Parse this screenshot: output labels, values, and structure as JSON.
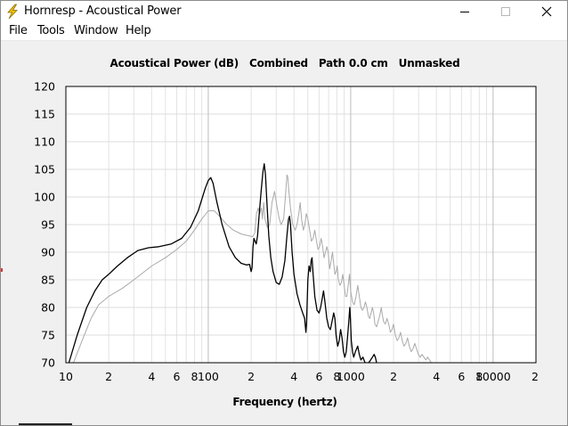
{
  "window": {
    "title": "Hornresp - Acoustical Power",
    "controls": {
      "minimize": "minimize-icon",
      "maximize": "maximize-icon",
      "close": "close-icon"
    }
  },
  "menu": [
    "File",
    "Tools",
    "Window",
    "Help"
  ],
  "chart_data": {
    "type": "line",
    "title": "Acoustical Power (dB)   Combined   Path 0.0 cm   Unmasked",
    "xlabel": "Frequency (hertz)",
    "ylabel": "",
    "xscale": "log",
    "xlim": [
      10,
      20000
    ],
    "ylim": [
      70,
      120
    ],
    "grid": true,
    "yticks": [
      70,
      75,
      80,
      85,
      90,
      95,
      100,
      105,
      110,
      115,
      120
    ],
    "xtick_labels": [
      {
        "value": 10,
        "label": "10"
      },
      {
        "value": 20,
        "label": "2"
      },
      {
        "value": 40,
        "label": "4"
      },
      {
        "value": 60,
        "label": "6"
      },
      {
        "value": 80,
        "label": "8"
      },
      {
        "value": 100,
        "label": "100"
      },
      {
        "value": 200,
        "label": "2"
      },
      {
        "value": 400,
        "label": "4"
      },
      {
        "value": 600,
        "label": "6"
      },
      {
        "value": 800,
        "label": "8"
      },
      {
        "value": 1000,
        "label": "1000"
      },
      {
        "value": 2000,
        "label": "2"
      },
      {
        "value": 4000,
        "label": "4"
      },
      {
        "value": 6000,
        "label": "6"
      },
      {
        "value": 8000,
        "label": "8"
      },
      {
        "value": 10000,
        "label": "10000"
      },
      {
        "value": 20000,
        "label": "2"
      }
    ],
    "series": [
      {
        "color": "#000000",
        "points": [
          [
            10.5,
            70
          ],
          [
            12,
            75
          ],
          [
            14,
            80
          ],
          [
            16,
            83
          ],
          [
            18,
            85
          ],
          [
            20,
            86
          ],
          [
            23,
            87.5
          ],
          [
            27,
            89
          ],
          [
            32,
            90.3
          ],
          [
            38,
            90.8
          ],
          [
            45,
            91
          ],
          [
            55,
            91.5
          ],
          [
            65,
            92.5
          ],
          [
            75,
            94.5
          ],
          [
            85,
            97.5
          ],
          [
            95,
            101.5
          ],
          [
            100,
            103
          ],
          [
            104,
            103.5
          ],
          [
            108,
            102.5
          ],
          [
            115,
            99
          ],
          [
            125,
            95
          ],
          [
            140,
            91
          ],
          [
            155,
            89
          ],
          [
            170,
            88
          ],
          [
            185,
            87.7
          ],
          [
            195,
            87.8
          ],
          [
            200,
            86.5
          ],
          [
            203,
            87.2
          ],
          [
            206,
            91
          ],
          [
            209,
            92.5
          ],
          [
            213,
            92
          ],
          [
            217,
            91.5
          ],
          [
            222,
            93
          ],
          [
            228,
            97
          ],
          [
            235,
            101
          ],
          [
            242,
            104.5
          ],
          [
            247,
            106
          ],
          [
            252,
            104
          ],
          [
            258,
            99
          ],
          [
            266,
            93
          ],
          [
            275,
            89
          ],
          [
            285,
            86.5
          ],
          [
            300,
            84.5
          ],
          [
            315,
            84.2
          ],
          [
            330,
            85.5
          ],
          [
            345,
            88.5
          ],
          [
            357,
            93
          ],
          [
            366,
            96
          ],
          [
            372,
            96.5
          ],
          [
            378,
            95
          ],
          [
            388,
            90
          ],
          [
            400,
            86
          ],
          [
            420,
            82.5
          ],
          [
            440,
            80.5
          ],
          [
            460,
            79
          ],
          [
            475,
            78
          ],
          [
            485,
            75.5
          ],
          [
            490,
            77
          ],
          [
            500,
            85
          ],
          [
            510,
            87.5
          ],
          [
            520,
            86.5
          ],
          [
            528,
            88.5
          ],
          [
            535,
            89
          ],
          [
            545,
            86
          ],
          [
            560,
            82
          ],
          [
            580,
            79.5
          ],
          [
            600,
            79
          ],
          [
            615,
            80
          ],
          [
            630,
            81.5
          ],
          [
            645,
            83
          ],
          [
            660,
            81
          ],
          [
            680,
            78
          ],
          [
            700,
            76.5
          ],
          [
            720,
            76
          ],
          [
            740,
            77.5
          ],
          [
            760,
            79
          ],
          [
            775,
            78
          ],
          [
            790,
            75
          ],
          [
            810,
            73
          ],
          [
            830,
            74
          ],
          [
            850,
            76
          ],
          [
            870,
            74.5
          ],
          [
            890,
            72
          ],
          [
            910,
            71
          ],
          [
            930,
            72
          ],
          [
            950,
            74.5
          ],
          [
            970,
            77.5
          ],
          [
            985,
            80
          ],
          [
            995,
            78
          ],
          [
            1010,
            74
          ],
          [
            1030,
            72
          ],
          [
            1050,
            71
          ],
          [
            1080,
            72
          ],
          [
            1120,
            73
          ],
          [
            1150,
            71.5
          ],
          [
            1180,
            70.5
          ],
          [
            1220,
            71
          ],
          [
            1260,
            70
          ],
          [
            1340,
            70
          ],
          [
            1380,
            70.5
          ],
          [
            1420,
            71
          ],
          [
            1460,
            71.5
          ],
          [
            1490,
            71
          ],
          [
            1520,
            70
          ]
        ]
      },
      {
        "color": "#aaaaaa",
        "points": [
          [
            11.3,
            70
          ],
          [
            13,
            74
          ],
          [
            15,
            78
          ],
          [
            17,
            80.5
          ],
          [
            20,
            82
          ],
          [
            25,
            83.5
          ],
          [
            30,
            85
          ],
          [
            40,
            87.5
          ],
          [
            50,
            89
          ],
          [
            60,
            90.5
          ],
          [
            70,
            92
          ],
          [
            80,
            94
          ],
          [
            90,
            96
          ],
          [
            100,
            97.5
          ],
          [
            110,
            97.5
          ],
          [
            120,
            96.5
          ],
          [
            135,
            95
          ],
          [
            150,
            94
          ],
          [
            170,
            93.3
          ],
          [
            190,
            93
          ],
          [
            205,
            92.8
          ],
          [
            212,
            93.5
          ],
          [
            218,
            97
          ],
          [
            224,
            98
          ],
          [
            230,
            97
          ],
          [
            236,
            98
          ],
          [
            240,
            96
          ],
          [
            245,
            99
          ],
          [
            250,
            96
          ],
          [
            260,
            94.5
          ],
          [
            270,
            95
          ],
          [
            280,
            99
          ],
          [
            292,
            101
          ],
          [
            305,
            98
          ],
          [
            315,
            96
          ],
          [
            325,
            95
          ],
          [
            338,
            96
          ],
          [
            350,
            101
          ],
          [
            357,
            104
          ],
          [
            362,
            103.5
          ],
          [
            368,
            101
          ],
          [
            378,
            98
          ],
          [
            392,
            95
          ],
          [
            408,
            94
          ],
          [
            420,
            95
          ],
          [
            432,
            97
          ],
          [
            442,
            99
          ],
          [
            452,
            96
          ],
          [
            465,
            94
          ],
          [
            477,
            95
          ],
          [
            488,
            97
          ],
          [
            500,
            96
          ],
          [
            515,
            94
          ],
          [
            530,
            92
          ],
          [
            545,
            92.5
          ],
          [
            560,
            94
          ],
          [
            575,
            92
          ],
          [
            590,
            90.5
          ],
          [
            605,
            91
          ],
          [
            620,
            92.5
          ],
          [
            635,
            91
          ],
          [
            650,
            89
          ],
          [
            665,
            90
          ],
          [
            680,
            91
          ],
          [
            695,
            90
          ],
          [
            712,
            87
          ],
          [
            730,
            88.5
          ],
          [
            745,
            90
          ],
          [
            760,
            88
          ],
          [
            775,
            86
          ],
          [
            790,
            86.5
          ],
          [
            805,
            87.5
          ],
          [
            820,
            85
          ],
          [
            840,
            84
          ],
          [
            860,
            84.5
          ],
          [
            880,
            86
          ],
          [
            900,
            84
          ],
          [
            920,
            82
          ],
          [
            940,
            82
          ],
          [
            960,
            84
          ],
          [
            980,
            86
          ],
          [
            1000,
            83
          ],
          [
            1030,
            81
          ],
          [
            1060,
            80.5
          ],
          [
            1090,
            82
          ],
          [
            1120,
            84
          ],
          [
            1150,
            82
          ],
          [
            1180,
            80
          ],
          [
            1210,
            79.5
          ],
          [
            1240,
            80
          ],
          [
            1270,
            81
          ],
          [
            1300,
            80
          ],
          [
            1330,
            78.5
          ],
          [
            1360,
            78
          ],
          [
            1390,
            79
          ],
          [
            1420,
            80
          ],
          [
            1450,
            79
          ],
          [
            1480,
            77
          ],
          [
            1520,
            76.5
          ],
          [
            1560,
            77.5
          ],
          [
            1600,
            78.5
          ],
          [
            1640,
            80
          ],
          [
            1660,
            79
          ],
          [
            1700,
            77.5
          ],
          [
            1750,
            77
          ],
          [
            1800,
            78
          ],
          [
            1850,
            77
          ],
          [
            1900,
            75.5
          ],
          [
            1950,
            76
          ],
          [
            2000,
            77
          ],
          [
            2060,
            75
          ],
          [
            2120,
            74
          ],
          [
            2180,
            74.5
          ],
          [
            2240,
            75.5
          ],
          [
            2300,
            74
          ],
          [
            2370,
            73
          ],
          [
            2440,
            73.5
          ],
          [
            2510,
            74.5
          ],
          [
            2580,
            73
          ],
          [
            2660,
            72
          ],
          [
            2740,
            72.5
          ],
          [
            2820,
            73.5
          ],
          [
            2900,
            72.5
          ],
          [
            2990,
            71.5
          ],
          [
            3080,
            71
          ],
          [
            3170,
            71.5
          ],
          [
            3270,
            71
          ],
          [
            3370,
            70.5
          ],
          [
            3470,
            71
          ],
          [
            3580,
            70.5
          ],
          [
            3680,
            70
          ]
        ]
      }
    ]
  }
}
